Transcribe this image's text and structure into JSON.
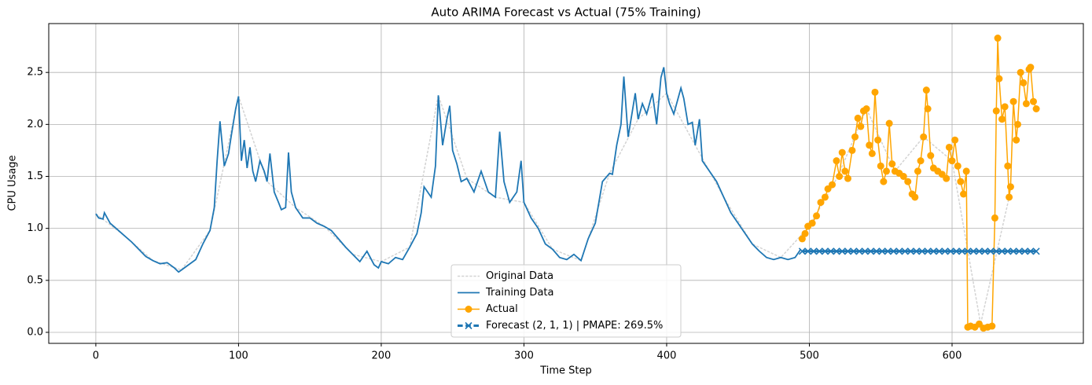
{
  "chart_data": {
    "type": "line",
    "title": "Auto ARIMA Forecast vs Actual (75% Training)",
    "xlabel": "Time Step",
    "ylabel": "CPU Usage",
    "xlim": [
      -33,
      692
    ],
    "ylim": [
      -0.106,
      2.97
    ],
    "xticks": [
      0,
      100,
      200,
      300,
      400,
      500,
      600
    ],
    "yticks": [
      {
        "value": 0,
        "label": "0.0"
      },
      0.5,
      {
        "value": 1,
        "label": "1.0"
      },
      1.5,
      {
        "value": 2,
        "label": "2.0"
      },
      2.5
    ],
    "grid": true,
    "legend": "lower center",
    "series": [
      {
        "name": "Original Data",
        "color": "#d3d3d3",
        "linestyle": "dashed",
        "linewidth": 1.5,
        "marker": null,
        "x": [
          0,
          20,
          40,
          60,
          80,
          100,
          120,
          140,
          160,
          180,
          200,
          220,
          240,
          260,
          280,
          300,
          320,
          340,
          360,
          380,
          400,
          420,
          440,
          460,
          480,
          500,
          520,
          540,
          560,
          580,
          600,
          620,
          640
        ],
        "values": [
          1.14,
          0.93,
          0.69,
          0.6,
          0.98,
          2.27,
          1.45,
          1.2,
          1.02,
          0.75,
          0.68,
          0.82,
          2.28,
          1.48,
          1.3,
          1.25,
          0.8,
          0.69,
          1.53,
          2.05,
          2.3,
          1.8,
          1.3,
          0.85,
          0.72,
          1.02,
          1.5,
          2.15,
          1.55,
          1.88,
          1.65,
          0.08,
          1.3
        ]
      },
      {
        "name": "Training Data",
        "color": "#1f77b4",
        "linestyle": "solid",
        "linewidth": 1.8,
        "marker": null,
        "x": [
          0,
          2,
          5,
          6,
          10,
          15,
          20,
          25,
          30,
          35,
          40,
          45,
          50,
          55,
          58,
          60,
          65,
          70,
          75,
          80,
          83,
          85,
          87,
          90,
          93,
          95,
          98,
          100,
          102,
          104,
          106,
          108,
          110,
          112,
          115,
          118,
          120,
          122,
          125,
          128,
          130,
          133,
          135,
          137,
          140,
          145,
          150,
          155,
          160,
          165,
          170,
          175,
          180,
          185,
          190,
          195,
          198,
          200,
          205,
          210,
          215,
          220,
          225,
          228,
          230,
          235,
          238,
          240,
          243,
          246,
          248,
          250,
          253,
          256,
          260,
          265,
          270,
          275,
          280,
          283,
          286,
          290,
          295,
          298,
          300,
          305,
          310,
          315,
          320,
          325,
          330,
          335,
          340,
          345,
          350,
          355,
          360,
          362,
          365,
          368,
          370,
          373,
          376,
          378,
          380,
          383,
          386,
          390,
          393,
          396,
          398,
          400,
          402,
          405,
          410,
          412,
          415,
          418,
          420,
          423,
          425,
          430,
          435,
          440,
          445,
          450,
          455,
          460,
          465,
          470,
          475,
          480,
          485,
          490,
          494
        ],
        "values": [
          1.14,
          1.1,
          1.09,
          1.15,
          1.05,
          0.99,
          0.93,
          0.87,
          0.8,
          0.73,
          0.69,
          0.66,
          0.67,
          0.62,
          0.58,
          0.6,
          0.65,
          0.7,
          0.85,
          0.98,
          1.2,
          1.65,
          2.03,
          1.6,
          1.72,
          1.9,
          2.15,
          2.27,
          1.65,
          1.85,
          1.58,
          1.78,
          1.55,
          1.45,
          1.65,
          1.55,
          1.45,
          1.72,
          1.35,
          1.25,
          1.18,
          1.2,
          1.73,
          1.35,
          1.2,
          1.1,
          1.1,
          1.05,
          1.02,
          0.98,
          0.9,
          0.82,
          0.75,
          0.68,
          0.78,
          0.65,
          0.62,
          0.68,
          0.66,
          0.72,
          0.7,
          0.82,
          0.95,
          1.15,
          1.4,
          1.3,
          1.6,
          2.28,
          1.8,
          2.05,
          2.18,
          1.75,
          1.62,
          1.45,
          1.48,
          1.35,
          1.55,
          1.35,
          1.3,
          1.93,
          1.45,
          1.25,
          1.35,
          1.65,
          1.25,
          1.1,
          1.0,
          0.85,
          0.8,
          0.72,
          0.7,
          0.75,
          0.69,
          0.9,
          1.05,
          1.45,
          1.53,
          1.52,
          1.8,
          2.0,
          2.46,
          1.88,
          2.13,
          2.3,
          2.05,
          2.2,
          2.1,
          2.3,
          2.0,
          2.45,
          2.55,
          2.3,
          2.2,
          2.1,
          2.35,
          2.25,
          2.0,
          2.02,
          1.8,
          2.05,
          1.65,
          1.55,
          1.45,
          1.3,
          1.15,
          1.05,
          0.95,
          0.85,
          0.78,
          0.72,
          0.7,
          0.72,
          0.7,
          0.72,
          0.8
        ]
      },
      {
        "name": "Actual",
        "color": "#ffa500",
        "linestyle": "solid",
        "linewidth": 1.5,
        "marker": "o",
        "x": [
          495,
          497,
          499,
          502,
          505,
          508,
          511,
          513,
          516,
          519,
          521,
          523,
          525,
          527,
          530,
          532,
          534,
          536,
          538,
          540,
          542,
          544,
          546,
          548,
          550,
          552,
          554,
          556,
          558,
          560,
          563,
          566,
          569,
          572,
          574,
          576,
          578,
          580,
          582,
          583,
          585,
          587,
          590,
          593,
          596,
          598,
          600,
          602,
          604,
          606,
          608,
          610,
          611,
          613,
          616,
          619,
          622,
          625,
          628,
          630,
          631,
          632,
          633,
          635,
          637,
          639,
          640,
          641,
          643,
          645,
          646,
          648,
          650,
          652,
          654,
          655,
          657,
          659
        ],
        "values": [
          0.9,
          0.95,
          1.02,
          1.05,
          1.12,
          1.25,
          1.3,
          1.38,
          1.42,
          1.65,
          1.5,
          1.73,
          1.55,
          1.48,
          1.75,
          1.88,
          2.06,
          1.98,
          2.13,
          2.15,
          1.8,
          1.72,
          2.31,
          1.85,
          1.6,
          1.45,
          1.55,
          2.01,
          1.62,
          1.55,
          1.53,
          1.5,
          1.45,
          1.33,
          1.3,
          1.55,
          1.65,
          1.88,
          2.33,
          2.15,
          1.7,
          1.58,
          1.55,
          1.52,
          1.48,
          1.78,
          1.65,
          1.85,
          1.6,
          1.45,
          1.33,
          1.55,
          0.05,
          0.06,
          0.05,
          0.08,
          0.04,
          0.05,
          0.06,
          1.1,
          2.13,
          2.83,
          2.44,
          2.05,
          2.17,
          1.6,
          1.3,
          1.4,
          2.22,
          1.85,
          2.0,
          2.5,
          2.4,
          2.2,
          2.53,
          2.55,
          2.22,
          2.15
        ]
      },
      {
        "name": "Forecast (2, 1, 1) | PMAPE: 269.5%",
        "color": "#1f77b4",
        "linestyle": "dashed",
        "linewidth": 3,
        "marker": "x",
        "x": [
          495,
          499,
          503,
          507,
          511,
          515,
          519,
          523,
          527,
          531,
          535,
          539,
          543,
          547,
          551,
          555,
          559,
          563,
          567,
          571,
          575,
          579,
          583,
          587,
          591,
          595,
          599,
          603,
          607,
          611,
          615,
          619,
          623,
          627,
          631,
          635,
          639,
          643,
          647,
          651,
          655,
          659
        ],
        "values": [
          0.78,
          0.78,
          0.78,
          0.78,
          0.78,
          0.78,
          0.78,
          0.78,
          0.78,
          0.78,
          0.78,
          0.78,
          0.78,
          0.78,
          0.78,
          0.78,
          0.78,
          0.78,
          0.78,
          0.78,
          0.78,
          0.78,
          0.78,
          0.78,
          0.78,
          0.78,
          0.78,
          0.78,
          0.78,
          0.78,
          0.78,
          0.78,
          0.78,
          0.78,
          0.78,
          0.78,
          0.78,
          0.78,
          0.78,
          0.78,
          0.78,
          0.78
        ]
      }
    ]
  }
}
